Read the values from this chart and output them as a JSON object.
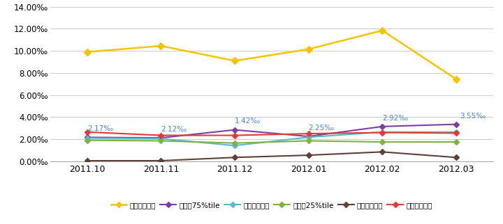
{
  "x_labels": [
    "2011.10",
    "2011.11",
    "2011.12",
    "2012.01",
    "2012.02",
    "2012.03"
  ],
  "series_order": [
    "全施設最大値",
    "全施設75%tile",
    "全施設中央値",
    "全施設25%tile",
    "全施設最小値",
    "全施設平均値"
  ],
  "series": {
    "全施設最大値": {
      "values": [
        9.9,
        10.45,
        9.1,
        10.15,
        11.85,
        7.45
      ],
      "color": "#F5C400",
      "marker": "D",
      "zorder": 5,
      "linewidth": 1.8,
      "markersize": 5
    },
    "全施設75%tile": {
      "values": [
        2.17,
        2.12,
        2.85,
        2.25,
        3.15,
        3.35
      ],
      "color": "#7B3FA0",
      "marker": "D",
      "zorder": 4,
      "linewidth": 1.5,
      "markersize": 4
    },
    "全施設中央値": {
      "values": [
        2.1,
        2.05,
        1.42,
        2.18,
        2.65,
        2.65
      ],
      "color": "#5BB8D4",
      "marker": "D",
      "zorder": 4,
      "linewidth": 1.5,
      "markersize": 4
    },
    "全施設25%tile": {
      "values": [
        1.9,
        1.85,
        1.65,
        1.85,
        1.75,
        1.75
      ],
      "color": "#7CB342",
      "marker": "D",
      "zorder": 4,
      "linewidth": 1.5,
      "markersize": 4
    },
    "全施設最小値": {
      "values": [
        0.05,
        0.05,
        0.35,
        0.55,
        0.85,
        0.35
      ],
      "color": "#5D4037",
      "marker": "D",
      "zorder": 4,
      "linewidth": 1.5,
      "markersize": 4
    },
    "全施設平均値": {
      "values": [
        2.65,
        2.35,
        2.35,
        2.5,
        2.6,
        2.55
      ],
      "color": "#E53935",
      "marker": "D",
      "zorder": 4,
      "linewidth": 1.5,
      "markersize": 4
    }
  },
  "ann_labels": [
    "2.17‰",
    "2.12‰",
    "1.42‰",
    "2.25‰",
    "2.92‰",
    "3.55‰"
  ],
  "ann_offsets_x": [
    0.0,
    0.0,
    0.0,
    0.0,
    0.0,
    0.05
  ],
  "ann_offsets_y": [
    0.45,
    0.45,
    0.45,
    0.45,
    0.45,
    0.45
  ],
  "annotation_color": "#4488CC",
  "ylim": [
    0.0,
    14.0
  ],
  "yticks": [
    0.0,
    2.0,
    4.0,
    6.0,
    8.0,
    10.0,
    12.0,
    14.0
  ],
  "ytick_labels": [
    "0.00‰",
    "2.00‰",
    "4.00‰",
    "6.00‰",
    "8.00‰",
    "10.00‰",
    "12.00‰",
    "14.00‰"
  ],
  "background_color": "#FFFFFF",
  "grid_color": "#CCCCCC"
}
